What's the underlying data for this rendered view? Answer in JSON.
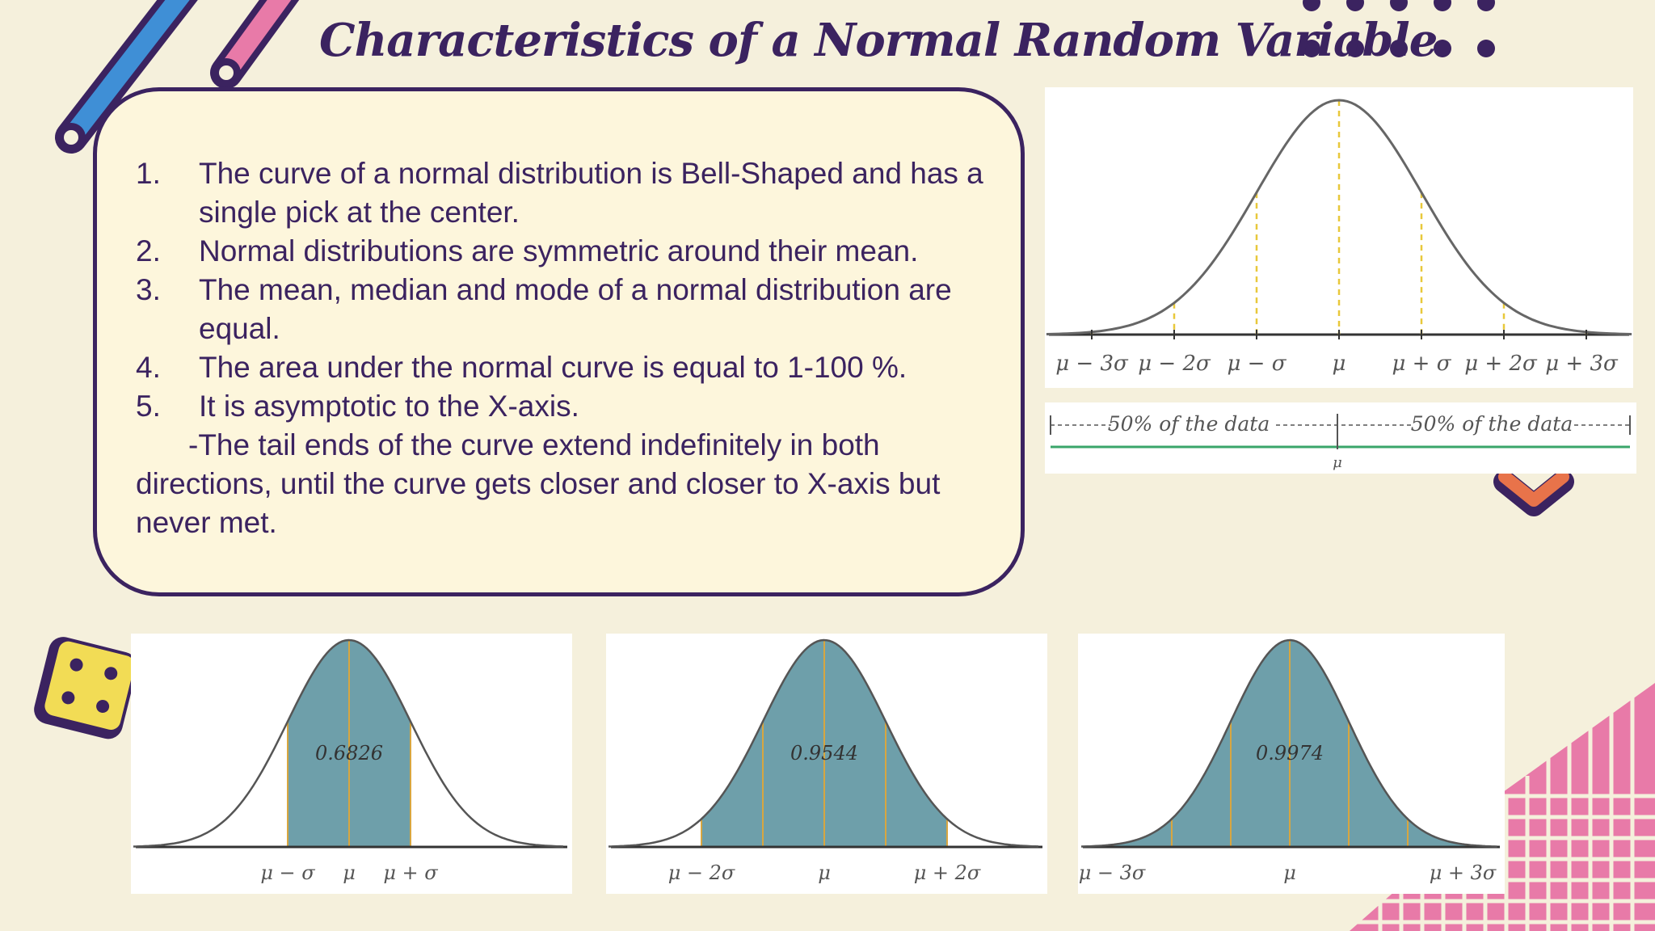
{
  "title": "Characteristics of a Normal Random Variable",
  "characteristics": [
    {
      "num": "1.",
      "text": " The curve of a normal distribution is Bell-Shaped and has a single pick at the center."
    },
    {
      "num": "2.",
      "text": "Normal distributions are symmetric around their mean."
    },
    {
      "num": "3.",
      "text": "The mean, median and mode of a normal distribution are equal."
    },
    {
      "num": "4.",
      "text": "The area under the normal curve is equal to 1-100 %."
    },
    {
      "num": "5.",
      "text": "It is asymptotic to the X-axis."
    }
  ],
  "note": "-The tail ends of the curve extend indefinitely in both directions, until the curve gets closer and closer to X-axis but never met.",
  "bell_curve": {
    "tick_labels": [
      "μ − 3σ",
      "μ − 2σ",
      "μ − σ",
      "μ",
      "μ + σ",
      "μ + 2σ",
      "μ + 3σ"
    ]
  },
  "split_bar": {
    "left_label": "50% of the data",
    "right_label": "50% of the data",
    "center_label": "μ"
  },
  "area_charts": [
    {
      "area": "0.6826",
      "labels": [
        "μ − σ",
        "μ",
        "μ + σ"
      ]
    },
    {
      "area": "0.9544",
      "labels": [
        "μ − 2σ",
        "μ",
        "μ + 2σ"
      ]
    },
    {
      "area": "0.9974",
      "labels": [
        "μ − 3σ",
        "μ",
        "μ + 3σ"
      ]
    }
  ],
  "colors": {
    "ink": "#3b2360",
    "shade": "#6e9faa",
    "guide": "#e8c83a",
    "pink": "#e87aa8",
    "blue": "#3f8fd6",
    "orange": "#e8734a",
    "dice": "#f2dc55"
  }
}
